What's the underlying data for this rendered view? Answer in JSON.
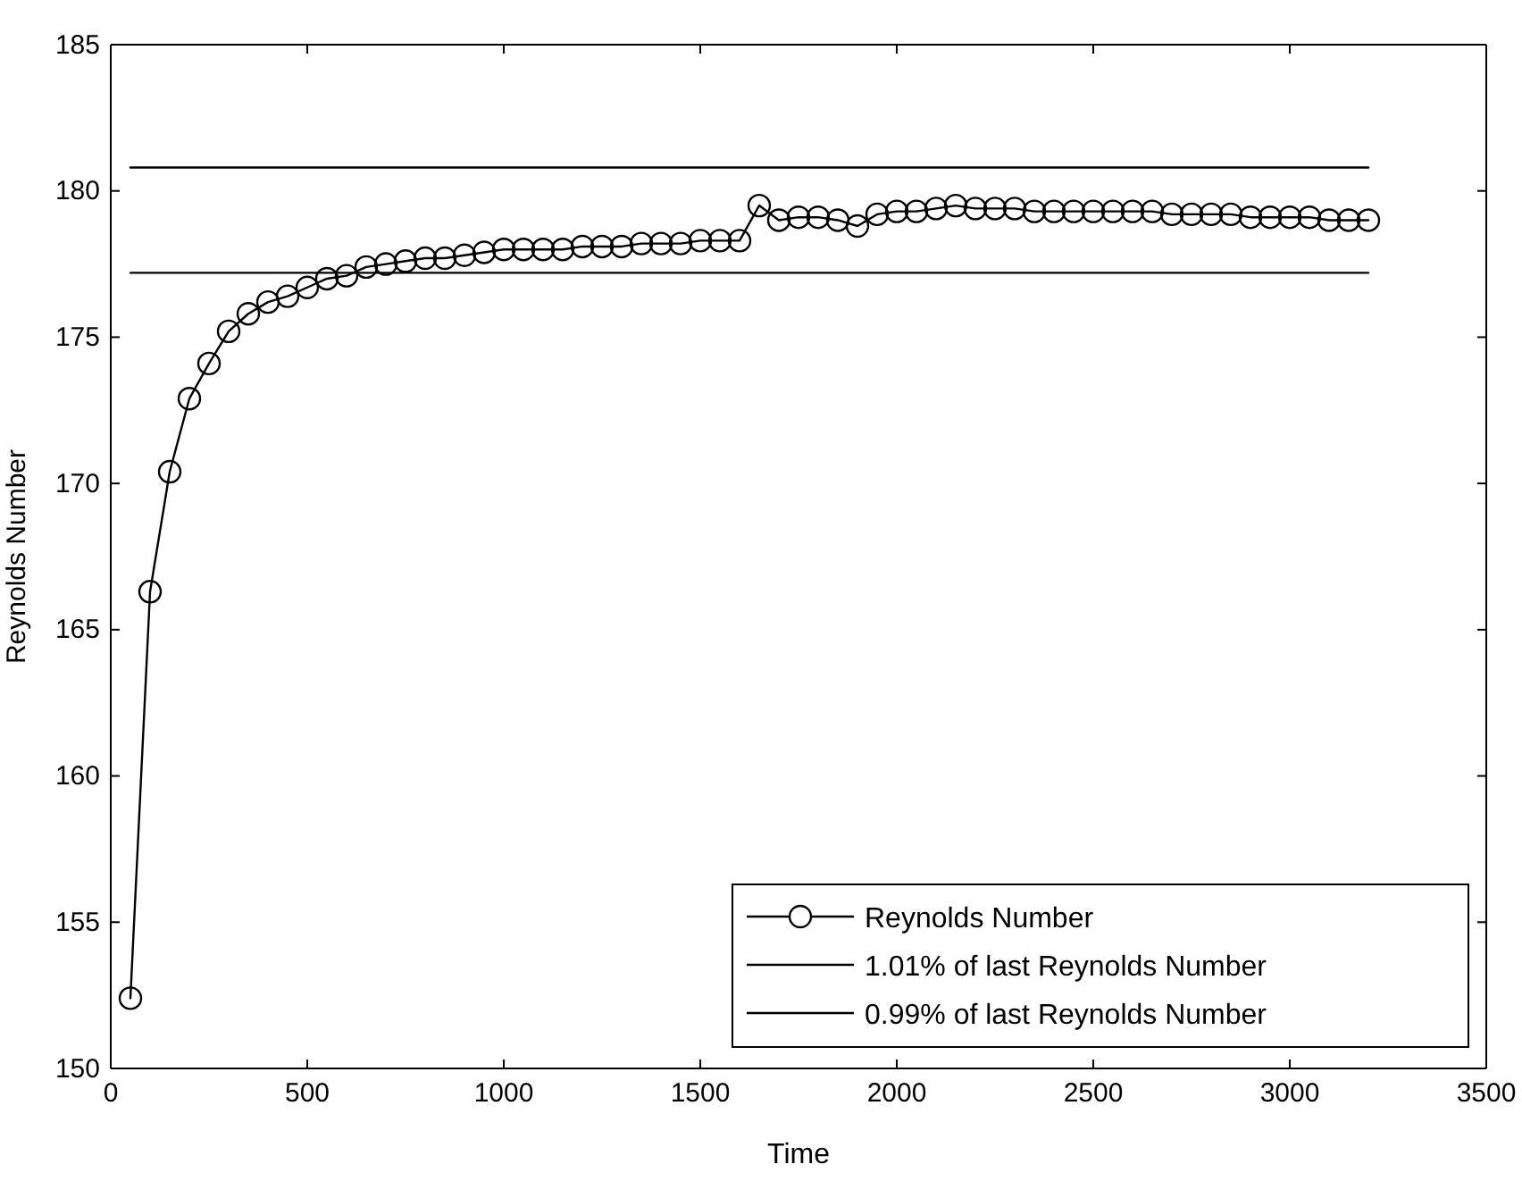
{
  "chart_data": {
    "type": "line",
    "xlabel": "Time",
    "ylabel": "Reynolds Number",
    "xlim": [
      0,
      3500
    ],
    "ylim": [
      150,
      185
    ],
    "xticks": [
      0,
      500,
      1000,
      1500,
      2000,
      2500,
      3000,
      3500
    ],
    "yticks": [
      150,
      155,
      160,
      165,
      170,
      175,
      180,
      185
    ],
    "grid": false,
    "legend": "bottom right",
    "x": [
      50,
      100,
      150,
      200,
      250,
      300,
      350,
      400,
      450,
      500,
      550,
      600,
      650,
      700,
      750,
      800,
      850,
      900,
      950,
      1000,
      1050,
      1100,
      1150,
      1200,
      1250,
      1300,
      1350,
      1400,
      1450,
      1500,
      1550,
      1600,
      1650,
      1700,
      1750,
      1800,
      1850,
      1900,
      1950,
      2000,
      2050,
      2100,
      2150,
      2200,
      2250,
      2300,
      2350,
      2400,
      2450,
      2500,
      2550,
      2600,
      2650,
      2700,
      2750,
      2800,
      2850,
      2900,
      2950,
      3000,
      3050,
      3100,
      3150,
      3200
    ],
    "series": [
      {
        "name": "Reynolds Number",
        "color": "#000000",
        "marker": "circle",
        "values": [
          152.4,
          166.3,
          170.4,
          172.9,
          174.1,
          175.2,
          175.8,
          176.2,
          176.4,
          176.7,
          177.0,
          177.1,
          177.4,
          177.5,
          177.6,
          177.7,
          177.7,
          177.8,
          177.9,
          178.0,
          178.0,
          178.0,
          178.0,
          178.1,
          178.1,
          178.1,
          178.2,
          178.2,
          178.2,
          178.3,
          178.3,
          178.3,
          179.5,
          179.0,
          179.1,
          179.1,
          179.0,
          178.8,
          179.2,
          179.3,
          179.3,
          179.4,
          179.5,
          179.4,
          179.4,
          179.4,
          179.3,
          179.3,
          179.3,
          179.3,
          179.3,
          179.3,
          179.3,
          179.2,
          179.2,
          179.2,
          179.2,
          179.1,
          179.1,
          179.1,
          179.1,
          179.0,
          179.0,
          179.0
        ]
      },
      {
        "name": "1.01% of last Reynolds Number",
        "color": "#000000",
        "marker": "none",
        "values": [
          180.8,
          180.8,
          180.8,
          180.8,
          180.8,
          180.8,
          180.8,
          180.8,
          180.8,
          180.8,
          180.8,
          180.8,
          180.8,
          180.8,
          180.8,
          180.8,
          180.8,
          180.8,
          180.8,
          180.8,
          180.8,
          180.8,
          180.8,
          180.8,
          180.8,
          180.8,
          180.8,
          180.8,
          180.8,
          180.8,
          180.8,
          180.8,
          180.8,
          180.8,
          180.8,
          180.8,
          180.8,
          180.8,
          180.8,
          180.8,
          180.8,
          180.8,
          180.8,
          180.8,
          180.8,
          180.8,
          180.8,
          180.8,
          180.8,
          180.8,
          180.8,
          180.8,
          180.8,
          180.8,
          180.8,
          180.8,
          180.8,
          180.8,
          180.8,
          180.8,
          180.8,
          180.8,
          180.8,
          180.8
        ]
      },
      {
        "name": "0.99% of last Reynolds Number",
        "color": "#000000",
        "marker": "none",
        "values": [
          177.2,
          177.2,
          177.2,
          177.2,
          177.2,
          177.2,
          177.2,
          177.2,
          177.2,
          177.2,
          177.2,
          177.2,
          177.2,
          177.2,
          177.2,
          177.2,
          177.2,
          177.2,
          177.2,
          177.2,
          177.2,
          177.2,
          177.2,
          177.2,
          177.2,
          177.2,
          177.2,
          177.2,
          177.2,
          177.2,
          177.2,
          177.2,
          177.2,
          177.2,
          177.2,
          177.2,
          177.2,
          177.2,
          177.2,
          177.2,
          177.2,
          177.2,
          177.2,
          177.2,
          177.2,
          177.2,
          177.2,
          177.2,
          177.2,
          177.2,
          177.2,
          177.2,
          177.2,
          177.2,
          177.2,
          177.2,
          177.2,
          177.2,
          177.2,
          177.2,
          177.2,
          177.2,
          177.2,
          177.2
        ]
      }
    ]
  }
}
